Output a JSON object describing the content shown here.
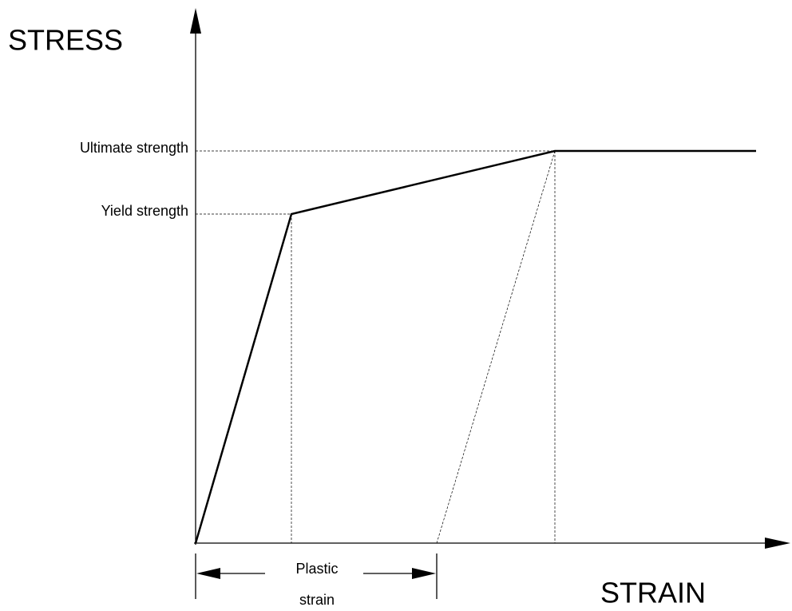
{
  "axes": {
    "y_label": "STRESS",
    "x_label": "STRAIN"
  },
  "levels": {
    "ultimate": "Ultimate strength",
    "yield": "Yield strength"
  },
  "dimension": {
    "lines": [
      "Plastic",
      "strain"
    ]
  }
}
